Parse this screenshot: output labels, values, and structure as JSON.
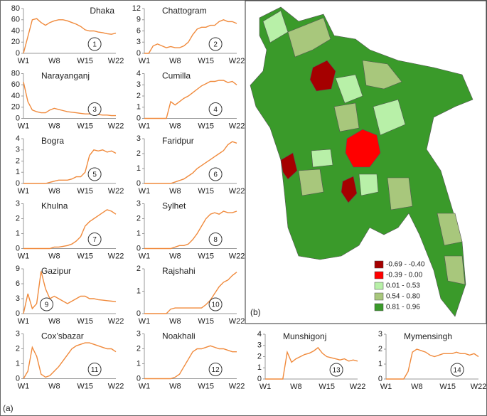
{
  "panel_label": "(a)",
  "map": {
    "label": "(b)",
    "legend": [
      {
        "label": "-0.69 - -0.40",
        "color": "#a50000"
      },
      {
        "label": "-0.39 - 0.00",
        "color": "#ff0000"
      },
      {
        "label": "0.01 - 0.53",
        "color": "#b8f0a8"
      },
      {
        "label": "0.54 - 0.80",
        "color": "#a8c77c"
      },
      {
        "label": "0.81 - 0.96",
        "color": "#3a9a2a"
      }
    ]
  },
  "chart_data": [
    {
      "type": "line",
      "title": "Dhaka",
      "annotation": "1",
      "color": "#f08a3c",
      "ylim": [
        0,
        80
      ],
      "yticks": [
        0,
        20,
        40,
        60,
        80
      ],
      "categories": [
        "W1",
        null,
        null,
        null,
        null,
        null,
        null,
        "W8",
        null,
        null,
        null,
        null,
        null,
        null,
        "W15",
        null,
        null,
        null,
        null,
        null,
        null,
        "W22"
      ],
      "values": [
        0,
        30,
        60,
        62,
        55,
        50,
        55,
        58,
        60,
        60,
        58,
        55,
        52,
        48,
        42,
        40,
        40,
        38,
        37,
        35,
        34,
        36
      ]
    },
    {
      "type": "line",
      "title": "Chattogram",
      "annotation": "2",
      "color": "#f08a3c",
      "ylim": [
        0,
        12
      ],
      "yticks": [
        0,
        3,
        6,
        9,
        12
      ],
      "categories": [
        "W1",
        null,
        null,
        null,
        null,
        null,
        null,
        "W8",
        null,
        null,
        null,
        null,
        null,
        null,
        "W15",
        null,
        null,
        null,
        null,
        null,
        null,
        "W22"
      ],
      "values": [
        0,
        0,
        2,
        2.5,
        2,
        1.5,
        1.8,
        1.5,
        1.5,
        2,
        3,
        5,
        6.5,
        7,
        7,
        7.5,
        7.5,
        8.5,
        9,
        8.5,
        8.5,
        8
      ]
    },
    {
      "type": "line",
      "title": "Narayanganj",
      "annotation": "3",
      "color": "#f08a3c",
      "ylim": [
        0,
        80
      ],
      "yticks": [
        0,
        20,
        40,
        60,
        80
      ],
      "categories": [
        "W1",
        null,
        null,
        null,
        null,
        null,
        null,
        "W8",
        null,
        null,
        null,
        null,
        null,
        null,
        "W15",
        null,
        null,
        null,
        null,
        null,
        null,
        "W22"
      ],
      "values": [
        65,
        30,
        15,
        12,
        10,
        10,
        15,
        18,
        16,
        14,
        12,
        11,
        10,
        9,
        8,
        8,
        7,
        7,
        6,
        6,
        5,
        5
      ]
    },
    {
      "type": "line",
      "title": "Cumilla",
      "annotation": "4",
      "color": "#f08a3c",
      "ylim": [
        0,
        4
      ],
      "yticks": [
        0,
        1,
        2,
        3,
        4
      ],
      "categories": [
        "W1",
        null,
        null,
        null,
        null,
        null,
        null,
        "W8",
        null,
        null,
        null,
        null,
        null,
        null,
        "W15",
        null,
        null,
        null,
        null,
        null,
        null,
        "W22"
      ],
      "values": [
        0,
        0,
        0,
        0,
        0,
        0,
        1.5,
        1.2,
        1.5,
        1.8,
        2.0,
        2.3,
        2.6,
        2.9,
        3.1,
        3.3,
        3.3,
        3.4,
        3.4,
        3.2,
        3.3,
        3.0
      ]
    },
    {
      "type": "line",
      "title": "Bogra",
      "annotation": "5",
      "color": "#f08a3c",
      "ylim": [
        0,
        4
      ],
      "yticks": [
        0,
        1,
        2,
        3,
        4
      ],
      "categories": [
        "W1",
        null,
        null,
        null,
        null,
        null,
        null,
        "W8",
        null,
        null,
        null,
        null,
        null,
        null,
        "W15",
        null,
        null,
        null,
        null,
        null,
        null,
        "W22"
      ],
      "values": [
        0,
        0,
        0,
        0,
        0,
        0,
        0.1,
        0.2,
        0.3,
        0.3,
        0.3,
        0.4,
        0.6,
        0.6,
        1,
        2.5,
        3,
        2.9,
        3.0,
        2.8,
        2.9,
        2.7
      ]
    },
    {
      "type": "line",
      "title": "Faridpur",
      "annotation": "6",
      "color": "#f08a3c",
      "ylim": [
        0,
        3
      ],
      "yticks": [
        0,
        1,
        2,
        3
      ],
      "categories": [
        "W1",
        null,
        null,
        null,
        null,
        null,
        null,
        "W8",
        null,
        null,
        null,
        null,
        null,
        null,
        "W15",
        null,
        null,
        null,
        null,
        null,
        null,
        "W22"
      ],
      "values": [
        0,
        0,
        0,
        0,
        0,
        0,
        0,
        0.1,
        0.2,
        0.3,
        0.5,
        0.7,
        1,
        1.2,
        1.4,
        1.6,
        1.8,
        2.0,
        2.2,
        2.6,
        2.8,
        2.7
      ]
    },
    {
      "type": "line",
      "title": "Khulna",
      "annotation": "7",
      "color": "#f08a3c",
      "ylim": [
        0,
        3
      ],
      "yticks": [
        0,
        1,
        2,
        3
      ],
      "categories": [
        "W1",
        null,
        null,
        null,
        null,
        null,
        null,
        "W8",
        null,
        null,
        null,
        null,
        null,
        null,
        "W15",
        null,
        null,
        null,
        null,
        null,
        null,
        "W22"
      ],
      "values": [
        0,
        0,
        0,
        0,
        0,
        0,
        0,
        0.1,
        0.1,
        0.15,
        0.2,
        0.3,
        0.5,
        0.8,
        1.5,
        1.8,
        2.0,
        2.2,
        2.4,
        2.6,
        2.5,
        2.3
      ]
    },
    {
      "type": "line",
      "title": "Sylhet",
      "annotation": "8",
      "color": "#f08a3c",
      "ylim": [
        0,
        3
      ],
      "yticks": [
        0,
        1,
        2,
        3
      ],
      "categories": [
        "W1",
        null,
        null,
        null,
        null,
        null,
        null,
        "W8",
        null,
        null,
        null,
        null,
        null,
        null,
        "W15",
        null,
        null,
        null,
        null,
        null,
        null,
        "W22"
      ],
      "values": [
        0,
        0,
        0,
        0,
        0,
        0,
        0,
        0.1,
        0.2,
        0.2,
        0.3,
        0.6,
        1,
        1.5,
        2.0,
        2.3,
        2.4,
        2.3,
        2.5,
        2.4,
        2.4,
        2.5
      ]
    },
    {
      "type": "line",
      "title": "Gazipur",
      "annotation": "9",
      "color": "#f08a3c",
      "ylim": [
        0,
        9
      ],
      "yticks": [
        0,
        3,
        6,
        9
      ],
      "categories": [
        "W1",
        null,
        null,
        null,
        null,
        null,
        null,
        "W8",
        null,
        null,
        null,
        null,
        null,
        null,
        "W15",
        null,
        null,
        null,
        null,
        null,
        null,
        "W22"
      ],
      "values": [
        0,
        4,
        1,
        2,
        8.5,
        5,
        3,
        3.5,
        3,
        2.5,
        2,
        2.5,
        3,
        3.5,
        3.5,
        3,
        3,
        2.8,
        2.7,
        2.6,
        2.5,
        2.4
      ]
    },
    {
      "type": "line",
      "title": "Rajshahi",
      "annotation": "10",
      "color": "#f08a3c",
      "ylim": [
        0,
        2
      ],
      "yticks": [
        0,
        1,
        2
      ],
      "categories": [
        "W1",
        null,
        null,
        null,
        null,
        null,
        null,
        "W8",
        null,
        null,
        null,
        null,
        null,
        null,
        "W15",
        null,
        null,
        null,
        null,
        null,
        null,
        "W22"
      ],
      "values": [
        0,
        0,
        0,
        0,
        0,
        0,
        0.2,
        0.25,
        0.25,
        0.25,
        0.25,
        0.25,
        0.25,
        0.25,
        0.4,
        0.6,
        0.9,
        1.2,
        1.4,
        1.5,
        1.7,
        1.85
      ]
    },
    {
      "type": "line",
      "title": "Cox’sbazar",
      "annotation": "11",
      "color": "#f08a3c",
      "ylim": [
        0,
        3
      ],
      "yticks": [
        0,
        1,
        2,
        3
      ],
      "categories": [
        "W1",
        null,
        null,
        null,
        null,
        null,
        null,
        "W8",
        null,
        null,
        null,
        null,
        null,
        null,
        "W15",
        null,
        null,
        null,
        null,
        null,
        null,
        "W22"
      ],
      "values": [
        0,
        0.5,
        2.1,
        1.5,
        0.3,
        0.1,
        0.2,
        0.5,
        0.8,
        1.2,
        1.6,
        2.0,
        2.2,
        2.3,
        2.4,
        2.4,
        2.3,
        2.2,
        2.1,
        2.0,
        2.0,
        1.8
      ]
    },
    {
      "type": "line",
      "title": "Noakhali",
      "annotation": "12",
      "color": "#f08a3c",
      "ylim": [
        0,
        3
      ],
      "yticks": [
        0,
        1,
        2,
        3
      ],
      "categories": [
        "W1",
        null,
        null,
        null,
        null,
        null,
        null,
        "W8",
        null,
        null,
        null,
        null,
        null,
        null,
        "W15",
        null,
        null,
        null,
        null,
        null,
        null,
        "W22"
      ],
      "values": [
        0,
        0,
        0,
        0,
        0,
        0,
        0,
        0.1,
        0.3,
        0.8,
        1.3,
        1.8,
        2.0,
        2.0,
        2.1,
        2.2,
        2.1,
        2.0,
        2.0,
        1.9,
        1.8,
        1.8
      ]
    },
    {
      "type": "line",
      "title": "Munshigonj",
      "annotation": "13",
      "color": "#f08a3c",
      "ylim": [
        0,
        4
      ],
      "yticks": [
        0,
        1,
        2,
        3,
        4
      ],
      "categories": [
        "W1",
        null,
        null,
        null,
        null,
        null,
        null,
        "W8",
        null,
        null,
        null,
        null,
        null,
        null,
        "W15",
        null,
        null,
        null,
        null,
        null,
        null,
        "W22"
      ],
      "values": [
        0,
        0,
        0,
        0,
        0,
        2.4,
        1.5,
        1.8,
        2.0,
        2.2,
        2.3,
        2.5,
        2.8,
        2.3,
        2.0,
        1.9,
        1.8,
        1.7,
        1.8,
        1.6,
        1.7,
        1.6
      ]
    },
    {
      "type": "line",
      "title": "Mymensingh",
      "annotation": "14",
      "color": "#f08a3c",
      "ylim": [
        0,
        3
      ],
      "yticks": [
        0,
        1,
        2,
        3
      ],
      "categories": [
        "W1",
        null,
        null,
        null,
        null,
        null,
        null,
        "W8",
        null,
        null,
        null,
        null,
        null,
        null,
        "W15",
        null,
        null,
        null,
        null,
        null,
        null,
        "W22"
      ],
      "values": [
        0,
        0,
        0,
        0,
        0,
        0.5,
        1.8,
        2.0,
        1.9,
        1.8,
        1.6,
        1.5,
        1.6,
        1.7,
        1.7,
        1.7,
        1.8,
        1.7,
        1.7,
        1.6,
        1.7,
        1.5
      ]
    }
  ]
}
